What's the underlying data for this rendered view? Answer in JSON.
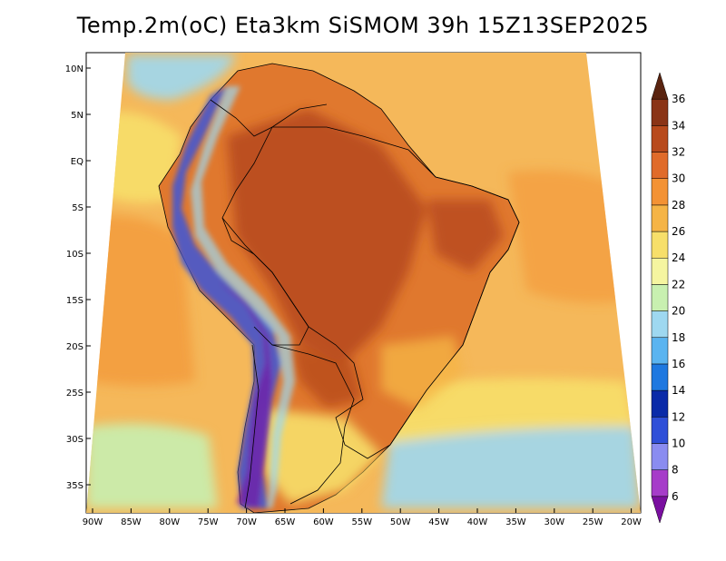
{
  "title": "Temp.2m(oC) Eta3km SiSMOM 39h 15Z13SEP2025",
  "lat_ticks": [
    "10N",
    "5N",
    "EQ",
    "5S",
    "10S",
    "15S",
    "20S",
    "25S",
    "30S",
    "35S"
  ],
  "lon_ticks": [
    "90W",
    "85W",
    "80W",
    "75W",
    "70W",
    "65W",
    "60W",
    "55W",
    "50W",
    "45W",
    "40W",
    "35W",
    "30W",
    "25W",
    "20W"
  ],
  "colorbar": {
    "labels": [
      "6",
      "8",
      "10",
      "12",
      "14",
      "16",
      "18",
      "20",
      "22",
      "24",
      "26",
      "28",
      "30",
      "32",
      "34",
      "36"
    ],
    "colors": [
      "#7a0fa0",
      "#a63cc9",
      "#8a8cf0",
      "#2f4fd8",
      "#0a2aa8",
      "#1e78e0",
      "#5ab4f0",
      "#9ed8f0",
      "#c8f0b0",
      "#f5f5a0",
      "#f7df6a",
      "#f5b446",
      "#f39234",
      "#e06b2a",
      "#b84a1c",
      "#8a3416",
      "#5a2410"
    ]
  },
  "colors": {
    "ocean": "#f5b85a",
    "continent": "#e0782e",
    "interior_hot": "#c8561e",
    "andes_cold": "#3c56d8",
    "patagonia": "#f7df6a"
  }
}
